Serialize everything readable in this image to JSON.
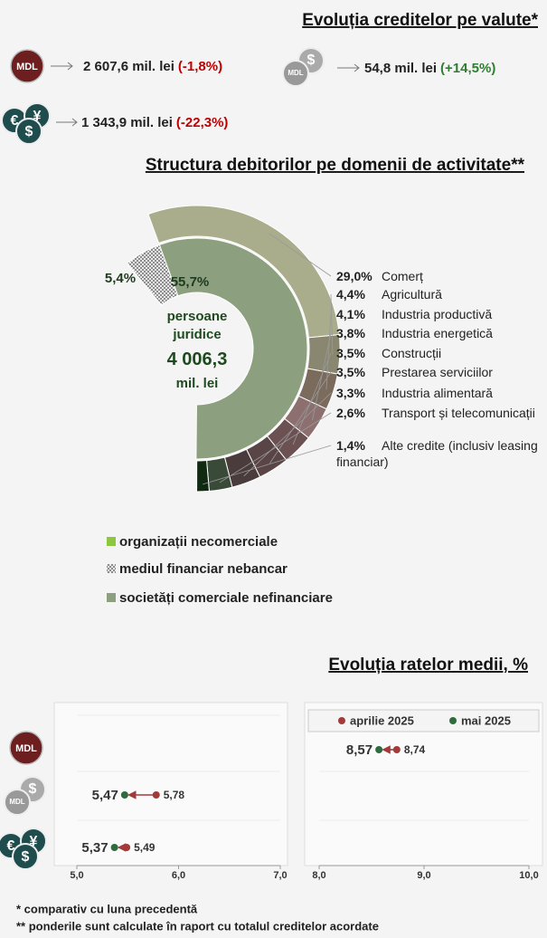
{
  "icons": {
    "mdl": "MDL",
    "dollar": "$",
    "euro": "€",
    "yen": "¥"
  },
  "currency_section": {
    "title": "Evoluția creditelor pe valute*",
    "items": [
      {
        "amount": "2 607,6 mil. lei",
        "change": "(-1,8%)"
      },
      {
        "amount": "54,8 mil. lei",
        "change": "(+14,5%)"
      },
      {
        "amount": "1 343,9 mil. lei",
        "change": "(-22,3%)"
      }
    ]
  },
  "chart_data": [
    {
      "type": "sunburst",
      "title": "Structura debitorilor pe domenii de activitate**",
      "center_label": "persoane juridice",
      "center_value": "4 006,3",
      "center_unit": "mil. lei",
      "inner": {
        "categories": [
          "organizații necomerciale",
          "mediul financiar nebancar",
          "societăți comerciale nefinanciare"
        ],
        "values": [
          null,
          5.4,
          55.7
        ],
        "value_labels": [
          null,
          "5,4%",
          "55,7%"
        ],
        "colors": [
          "#8dc63f",
          "#9a9a9a",
          "#8c9f7e"
        ],
        "patterns": [
          null,
          "crosshatch",
          null
        ]
      },
      "outer": {
        "categories": [
          "Comerț",
          "Agricultură",
          "Industria productivă",
          "Industria energetică",
          "Construcții",
          "Prestarea serviciilor",
          "Industria alimentară",
          "Transport și telecomunicații",
          "Alte credite (inclusiv leasing financiar)"
        ],
        "values": [
          29.0,
          4.4,
          4.1,
          3.8,
          3.5,
          3.5,
          3.3,
          2.6,
          1.4
        ],
        "value_labels": [
          "29,0%",
          "4,4%",
          "4,1%",
          "3,8%",
          "3,5%",
          "3,5%",
          "3,3%",
          "2,6%",
          "1,4%"
        ],
        "colors": [
          "#a9ad8c",
          "#8a8770",
          "#7a6b5d",
          "#8d6f70",
          "#6b5152",
          "#5a4546",
          "#4a3b3c",
          "#394a38",
          "#0f2a10"
        ]
      }
    },
    {
      "type": "dumbbell",
      "title": "Evoluția ratelor medii, %",
      "series": [
        {
          "color": "#a33a3a",
          "values": [
            null,
            5.78,
            5.49
          ],
          "value_labels": [
            null,
            "5,78",
            "5,49"
          ]
        },
        {
          "color": "#2e6b3f",
          "values": [
            null,
            5.47,
            5.37
          ],
          "value_labels": [
            null,
            "5,47",
            "5,37"
          ]
        }
      ],
      "xlim": [
        5,
        7
      ],
      "xticks": [
        {
          "value": 5,
          "label": "5,0"
        },
        {
          "value": 6,
          "label": "6,0"
        },
        {
          "value": 7,
          "label": "7,0"
        }
      ]
    },
    {
      "type": "dumbbell",
      "legend": "top",
      "series": [
        {
          "name": "aprilie 2025",
          "color": "#a33a3a",
          "values": [
            8.74,
            null,
            null
          ],
          "value_labels": [
            "8,74",
            null,
            null
          ]
        },
        {
          "name": "mai 2025",
          "color": "#2e6b3f",
          "values": [
            8.57,
            null,
            null
          ],
          "value_labels": [
            "8,57",
            null,
            null
          ]
        }
      ],
      "xlim": [
        8,
        10
      ],
      "xticks": [
        {
          "value": 8,
          "label": "8,0"
        },
        {
          "value": 9,
          "label": "9,0"
        },
        {
          "value": 10,
          "label": "10,0"
        }
      ]
    }
  ],
  "footnotes": [
    "* comparativ cu luna precedentă",
    "** ponderile sunt calculate în raport cu totalul creditelor acordate"
  ]
}
